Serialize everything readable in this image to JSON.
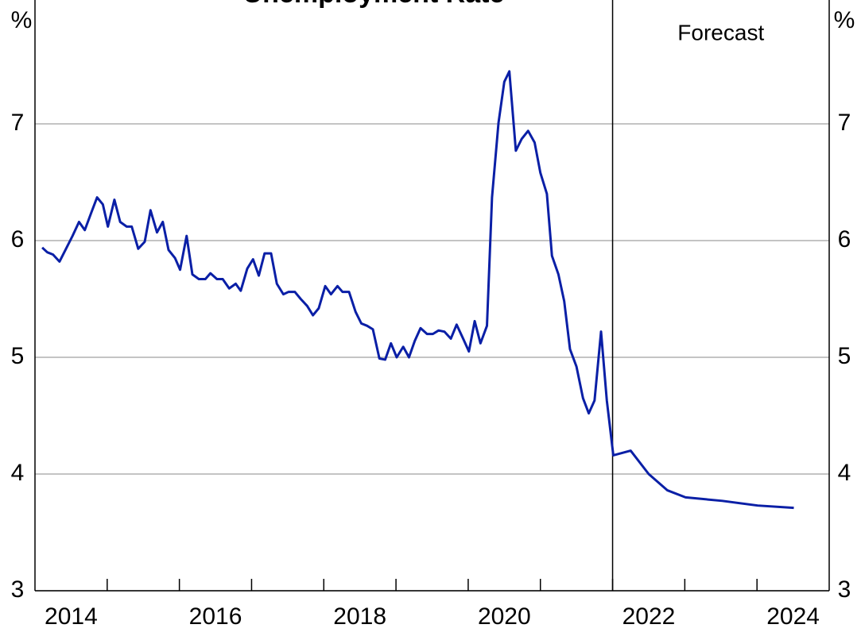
{
  "chart_data": {
    "type": "line",
    "title": "Unemployment Rate",
    "y_unit": "%",
    "y2_unit": "%",
    "annotation": "Forecast",
    "forecast_start": 2022.0,
    "xlim": [
      2014,
      2025
    ],
    "xticks": [
      {
        "value": 2014.5,
        "label": "2014"
      },
      {
        "value": 2016.5,
        "label": "2016"
      },
      {
        "value": 2018.5,
        "label": "2018"
      },
      {
        "value": 2020.5,
        "label": "2020"
      },
      {
        "value": 2022.5,
        "label": "2022"
      },
      {
        "value": 2024.5,
        "label": "2024"
      }
    ],
    "xtick_marks": [
      2015,
      2016,
      2017,
      2018,
      2019,
      2020,
      2021,
      2022,
      2023,
      2024
    ],
    "ylim": [
      3,
      8
    ],
    "yticks": [
      3,
      4,
      5,
      6,
      7
    ],
    "y2lim": [
      3,
      8
    ],
    "y2ticks": [
      3,
      4,
      5,
      6,
      7
    ],
    "grid": true,
    "series": [
      {
        "name": "Unemployment rate",
        "color": "#0a1fa6",
        "x": [
          2014.1,
          2014.17,
          2014.25,
          2014.34,
          2014.43,
          2014.52,
          2014.61,
          2014.69,
          2014.78,
          2014.86,
          2014.94,
          2015.01,
          2015.1,
          2015.18,
          2015.27,
          2015.34,
          2015.43,
          2015.52,
          2015.6,
          2015.69,
          2015.77,
          2015.85,
          2015.94,
          2016.01,
          2016.1,
          2016.18,
          2016.27,
          2016.36,
          2016.43,
          2016.52,
          2016.6,
          2016.69,
          2016.78,
          2016.85,
          2016.94,
          2017.02,
          2017.1,
          2017.18,
          2017.27,
          2017.35,
          2017.44,
          2017.51,
          2017.6,
          2017.68,
          2017.77,
          2017.85,
          2017.93,
          2018.02,
          2018.1,
          2018.19,
          2018.26,
          2018.35,
          2018.44,
          2018.52,
          2018.6,
          2018.68,
          2018.77,
          2018.85,
          2018.93,
          2019.01,
          2019.1,
          2019.18,
          2019.26,
          2019.34,
          2019.43,
          2019.51,
          2019.59,
          2019.67,
          2019.76,
          2019.84,
          2019.93,
          2020.01,
          2020.09,
          2020.17,
          2020.26,
          2020.33,
          2020.42,
          2020.5,
          2020.57,
          2020.66,
          2020.74,
          2020.83,
          2020.92,
          2021.0,
          2021.09,
          2021.16,
          2021.25,
          2021.33,
          2021.41,
          2021.5,
          2021.59,
          2021.67,
          2021.75,
          2021.84,
          2021.92,
          2022.01,
          2022.25,
          2022.5,
          2022.76,
          2023.01,
          2023.52,
          2024.01,
          2024.51
        ],
        "values": [
          5.94,
          5.9,
          5.88,
          5.82,
          5.93,
          6.04,
          6.16,
          6.09,
          6.24,
          6.37,
          6.31,
          6.12,
          6.35,
          6.16,
          6.12,
          6.12,
          5.93,
          5.99,
          6.26,
          6.07,
          6.16,
          5.92,
          5.85,
          5.75,
          6.04,
          5.71,
          5.67,
          5.67,
          5.72,
          5.67,
          5.67,
          5.59,
          5.63,
          5.57,
          5.76,
          5.84,
          5.7,
          5.89,
          5.89,
          5.63,
          5.54,
          5.56,
          5.56,
          5.5,
          5.44,
          5.36,
          5.42,
          5.61,
          5.54,
          5.61,
          5.56,
          5.56,
          5.39,
          5.29,
          5.27,
          5.24,
          4.99,
          4.98,
          5.12,
          5.0,
          5.09,
          5.0,
          5.14,
          5.25,
          5.2,
          5.2,
          5.23,
          5.22,
          5.16,
          5.28,
          5.16,
          5.05,
          5.31,
          5.12,
          5.27,
          6.37,
          7.01,
          7.36,
          7.45,
          6.77,
          6.87,
          6.94,
          6.84,
          6.58,
          6.4,
          5.87,
          5.71,
          5.48,
          5.07,
          4.92,
          4.65,
          4.52,
          4.63,
          5.22,
          4.63,
          4.16,
          4.2,
          4.0,
          3.86,
          3.8,
          3.77,
          3.73,
          3.71
        ]
      }
    ]
  }
}
